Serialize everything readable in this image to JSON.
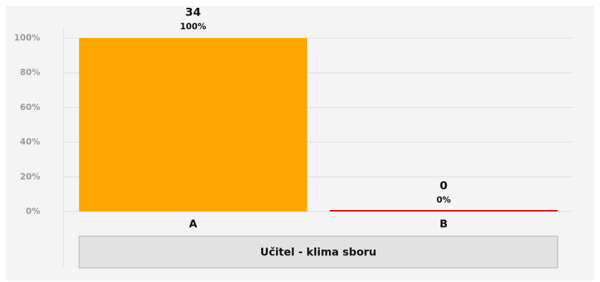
{
  "chart_data": {
    "type": "bar",
    "categories": [
      "A",
      "B"
    ],
    "values": [
      100,
      0
    ],
    "value_labels": [
      "100%",
      "0%"
    ],
    "counts": [
      34,
      0
    ],
    "colors": [
      "#ffa500",
      "#e00000"
    ],
    "xlabel": "Učitel - klima sboru",
    "ylim": [
      0,
      100
    ],
    "yticks": [
      {
        "value": 0,
        "label": "0%"
      },
      {
        "value": 20,
        "label": "20%"
      },
      {
        "value": 40,
        "label": "40%"
      },
      {
        "value": 60,
        "label": "60%"
      },
      {
        "value": 80,
        "label": "80%"
      },
      {
        "value": 100,
        "label": "100%"
      }
    ],
    "grid": true
  }
}
